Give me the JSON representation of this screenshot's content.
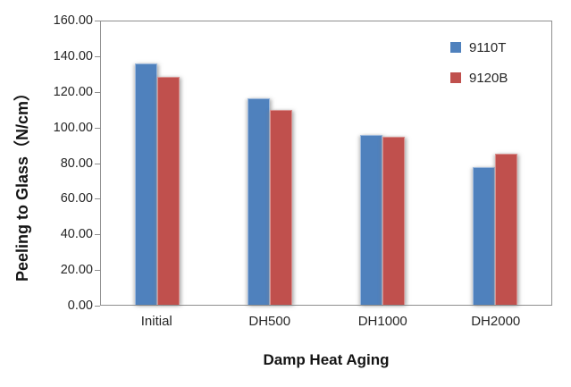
{
  "chart_data": {
    "type": "bar",
    "title": "",
    "categories": [
      "Initial",
      "DH500",
      "DH1000",
      "DH2000"
    ],
    "series": [
      {
        "name": "9110T",
        "color": "#4F81BD",
        "edge": "#9DB9DC",
        "values": [
          136.5,
          116.5,
          96.0,
          77.5
        ]
      },
      {
        "name": "9120B",
        "color": "#C0504D",
        "edge": "#D9918F",
        "values": [
          128.5,
          110.0,
          95.0,
          85.5
        ]
      }
    ],
    "xlabel": "Damp Heat Aging",
    "ylabel": "Peeling to Glass（N/cm）",
    "ylim": [
      0,
      160
    ],
    "ytick_step": 20,
    "ytick_labels": [
      "0.00",
      "20.00",
      "40.00",
      "60.00",
      "80.00",
      "100.00",
      "120.00",
      "140.00",
      "160.00"
    ],
    "grid": false,
    "legend_position": "top-right-inside",
    "axis_color": "#8f8f8f",
    "text_color": "#262626"
  }
}
